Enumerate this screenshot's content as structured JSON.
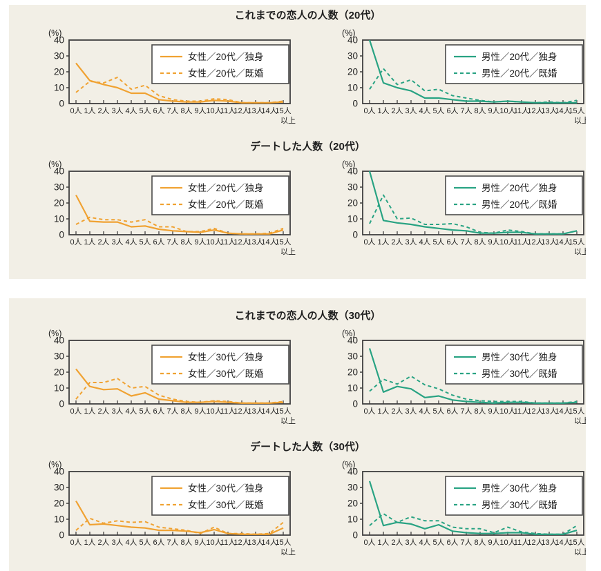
{
  "page": {
    "background": "#ffffff",
    "panel_background": "#f2efe6"
  },
  "colors": {
    "female": "#f0a232",
    "male": "#29a383",
    "axis": "#3f3f3f",
    "text": "#1f1f1f",
    "legend_bg": "#ffffff",
    "legend_border": "#4a4a4a"
  },
  "axis": {
    "unit": "(%)",
    "ylim": [
      0,
      40
    ],
    "yticks": [
      0,
      10,
      20,
      30,
      40
    ],
    "xlabels": [
      "0人",
      "1人",
      "2人",
      "3人",
      "4人",
      "5人",
      "6人",
      "7人",
      "8人",
      "9人",
      "10人",
      "11人",
      "12人",
      "13人",
      "14人",
      "15人"
    ],
    "xlast_suffix": "以上",
    "grid": false,
    "legend_position": "top-right"
  },
  "chart_data": [
    {
      "type": "line",
      "title": "これまでの恋人の人数（20代）",
      "color_key": "female",
      "x": [
        "0人",
        "1人",
        "2人",
        "3人",
        "4人",
        "5人",
        "6人",
        "7人",
        "8人",
        "9人",
        "10人",
        "11人",
        "12人",
        "13人",
        "14人",
        "15人以上"
      ],
      "ylabel": "(%)",
      "ylim": [
        0,
        40
      ],
      "series": [
        {
          "name": "女性／20代／独身",
          "style": "solid",
          "values": [
            25.5,
            14.5,
            12,
            10,
            6.5,
            6.5,
            2.5,
            1.5,
            1,
            1,
            2,
            1.5,
            0.5,
            0.5,
            0.5,
            1
          ]
        },
        {
          "name": "女性／20代／既婚",
          "style": "dashed",
          "values": [
            7,
            14,
            13,
            16.5,
            9,
            11.5,
            5,
            2.5,
            1.5,
            1.5,
            3,
            2.5,
            0.5,
            0.5,
            0.5,
            1.5
          ]
        }
      ]
    },
    {
      "type": "line",
      "title": "これまでの恋人の人数（20代）",
      "color_key": "male",
      "x": [
        "0人",
        "1人",
        "2人",
        "3人",
        "4人",
        "5人",
        "6人",
        "7人",
        "8人",
        "9人",
        "10人",
        "11人",
        "12人",
        "13人",
        "14人",
        "15人以上"
      ],
      "ylabel": "(%)",
      "ylim": [
        0,
        40
      ],
      "series": [
        {
          "name": "男性／20代／独身",
          "style": "solid",
          "values": [
            40,
            13,
            10,
            8,
            3.5,
            3.5,
            2.5,
            1.5,
            1.5,
            1,
            1.5,
            1,
            0.5,
            0.5,
            0.5,
            0.5
          ]
        },
        {
          "name": "男性／20代／既婚",
          "style": "dashed",
          "values": [
            9,
            22,
            12,
            15,
            8,
            9,
            5,
            3.5,
            2,
            1,
            1.5,
            1,
            0.5,
            1,
            0.5,
            2
          ]
        }
      ]
    },
    {
      "type": "line",
      "title": "デートした人数（20代）",
      "color_key": "female",
      "x": [
        "0人",
        "1人",
        "2人",
        "3人",
        "4人",
        "5人",
        "6人",
        "7人",
        "8人",
        "9人",
        "10人",
        "11人",
        "12人",
        "13人",
        "14人",
        "15人以上"
      ],
      "ylabel": "(%)",
      "ylim": [
        0,
        40
      ],
      "series": [
        {
          "name": "女性／20代／独身",
          "style": "solid",
          "values": [
            25,
            8.5,
            8,
            8,
            5,
            5.5,
            3.5,
            2.5,
            2,
            1.5,
            3,
            1,
            0.5,
            0.5,
            0.5,
            3
          ]
        },
        {
          "name": "女性／20代／既婚",
          "style": "dashed",
          "values": [
            6.5,
            11,
            9.5,
            9.5,
            8,
            9.5,
            5,
            5,
            2,
            2,
            4,
            1,
            0.5,
            0.5,
            1,
            4
          ]
        }
      ]
    },
    {
      "type": "line",
      "title": "デートした人数（20代）",
      "color_key": "male",
      "x": [
        "0人",
        "1人",
        "2人",
        "3人",
        "4人",
        "5人",
        "6人",
        "7人",
        "8人",
        "9人",
        "10人",
        "11人",
        "12人",
        "13人",
        "14人",
        "15人以上"
      ],
      "ylabel": "(%)",
      "ylim": [
        0,
        40
      ],
      "series": [
        {
          "name": "男性／20代／独身",
          "style": "solid",
          "values": [
            40,
            9,
            7.5,
            6.5,
            5,
            4,
            3,
            2.5,
            1,
            1,
            1.5,
            1.5,
            0.5,
            0.5,
            0.5,
            2.5
          ]
        },
        {
          "name": "男性／20代／既婚",
          "style": "dashed",
          "values": [
            7,
            25,
            10,
            10.5,
            6.5,
            6.5,
            7,
            5,
            1.5,
            1,
            3,
            2,
            0.5,
            0.5,
            0.5,
            2.5
          ]
        }
      ]
    },
    {
      "type": "line",
      "title": "これまでの恋人の人数（30代）",
      "color_key": "female",
      "x": [
        "0人",
        "1人",
        "2人",
        "3人",
        "4人",
        "5人",
        "6人",
        "7人",
        "8人",
        "9人",
        "10人",
        "11人",
        "12人",
        "13人",
        "14人",
        "15人以上"
      ],
      "ylabel": "(%)",
      "ylim": [
        0,
        40
      ],
      "series": [
        {
          "name": "女性／30代／独身",
          "style": "solid",
          "values": [
            22,
            11,
            9,
            9.5,
            5,
            7,
            3,
            2,
            1,
            1,
            1.5,
            1,
            0.5,
            0.5,
            0.5,
            1
          ]
        },
        {
          "name": "女性／30代／既婚",
          "style": "dashed",
          "values": [
            3,
            13.5,
            13.5,
            16,
            10,
            11,
            5.5,
            3,
            1.5,
            1,
            2,
            1.5,
            0.5,
            0.5,
            0.5,
            1.5
          ]
        }
      ]
    },
    {
      "type": "line",
      "title": "これまでの恋人の人数（30代）",
      "color_key": "male",
      "x": [
        "0人",
        "1人",
        "2人",
        "3人",
        "4人",
        "5人",
        "6人",
        "7人",
        "8人",
        "9人",
        "10人",
        "11人",
        "12人",
        "13人",
        "14人",
        "15人以上"
      ],
      "ylabel": "(%)",
      "ylim": [
        0,
        40
      ],
      "series": [
        {
          "name": "男性／30代／独身",
          "style": "solid",
          "values": [
            35,
            7.5,
            11,
            9.5,
            4,
            5,
            2.5,
            1.5,
            1,
            0.5,
            1,
            1,
            0.5,
            0.5,
            0.5,
            1
          ]
        },
        {
          "name": "男性／30代／既婚",
          "style": "dashed",
          "values": [
            8,
            15.5,
            12.5,
            17.5,
            12,
            9.5,
            5.5,
            3,
            2,
            1.5,
            1.5,
            1.5,
            0.5,
            0.5,
            0.5,
            1.5
          ]
        }
      ]
    },
    {
      "type": "line",
      "title": "デートした人数（30代）",
      "color_key": "female",
      "x": [
        "0人",
        "1人",
        "2人",
        "3人",
        "4人",
        "5人",
        "6人",
        "7人",
        "8人",
        "9人",
        "10人",
        "11人",
        "12人",
        "13人",
        "14人",
        "15人以上"
      ],
      "ylabel": "(%)",
      "ylim": [
        0,
        40
      ],
      "series": [
        {
          "name": "女性／30代／独身",
          "style": "solid",
          "values": [
            21.5,
            6.5,
            7,
            6,
            5,
            4.5,
            3,
            3,
            2.5,
            1.5,
            3.5,
            1,
            0.5,
            0.5,
            0.5,
            4.5
          ]
        },
        {
          "name": "女性／30代／既婚",
          "style": "dashed",
          "values": [
            3,
            10.5,
            7.5,
            9,
            8,
            8.5,
            5,
            4,
            3,
            1,
            5,
            1,
            1,
            0.5,
            1,
            8
          ]
        }
      ]
    },
    {
      "type": "line",
      "title": "デートした人数（30代）",
      "color_key": "male",
      "x": [
        "0人",
        "1人",
        "2人",
        "3人",
        "4人",
        "5人",
        "6人",
        "7人",
        "8人",
        "9人",
        "10人",
        "11人",
        "12人",
        "13人",
        "14人",
        "15人以上"
      ],
      "ylabel": "(%)",
      "ylim": [
        0,
        40
      ],
      "series": [
        {
          "name": "男性／30代／独身",
          "style": "solid",
          "values": [
            34,
            6,
            8,
            7,
            4,
            6.5,
            2.5,
            1.5,
            1,
            1,
            1.5,
            1.5,
            0.5,
            0.5,
            0.5,
            3
          ]
        },
        {
          "name": "男性／30代／既婚",
          "style": "dashed",
          "values": [
            6,
            13.5,
            8,
            11.5,
            9,
            9,
            5,
            4,
            4,
            1.5,
            5,
            2,
            1,
            0.5,
            0.5,
            6
          ]
        }
      ]
    }
  ]
}
